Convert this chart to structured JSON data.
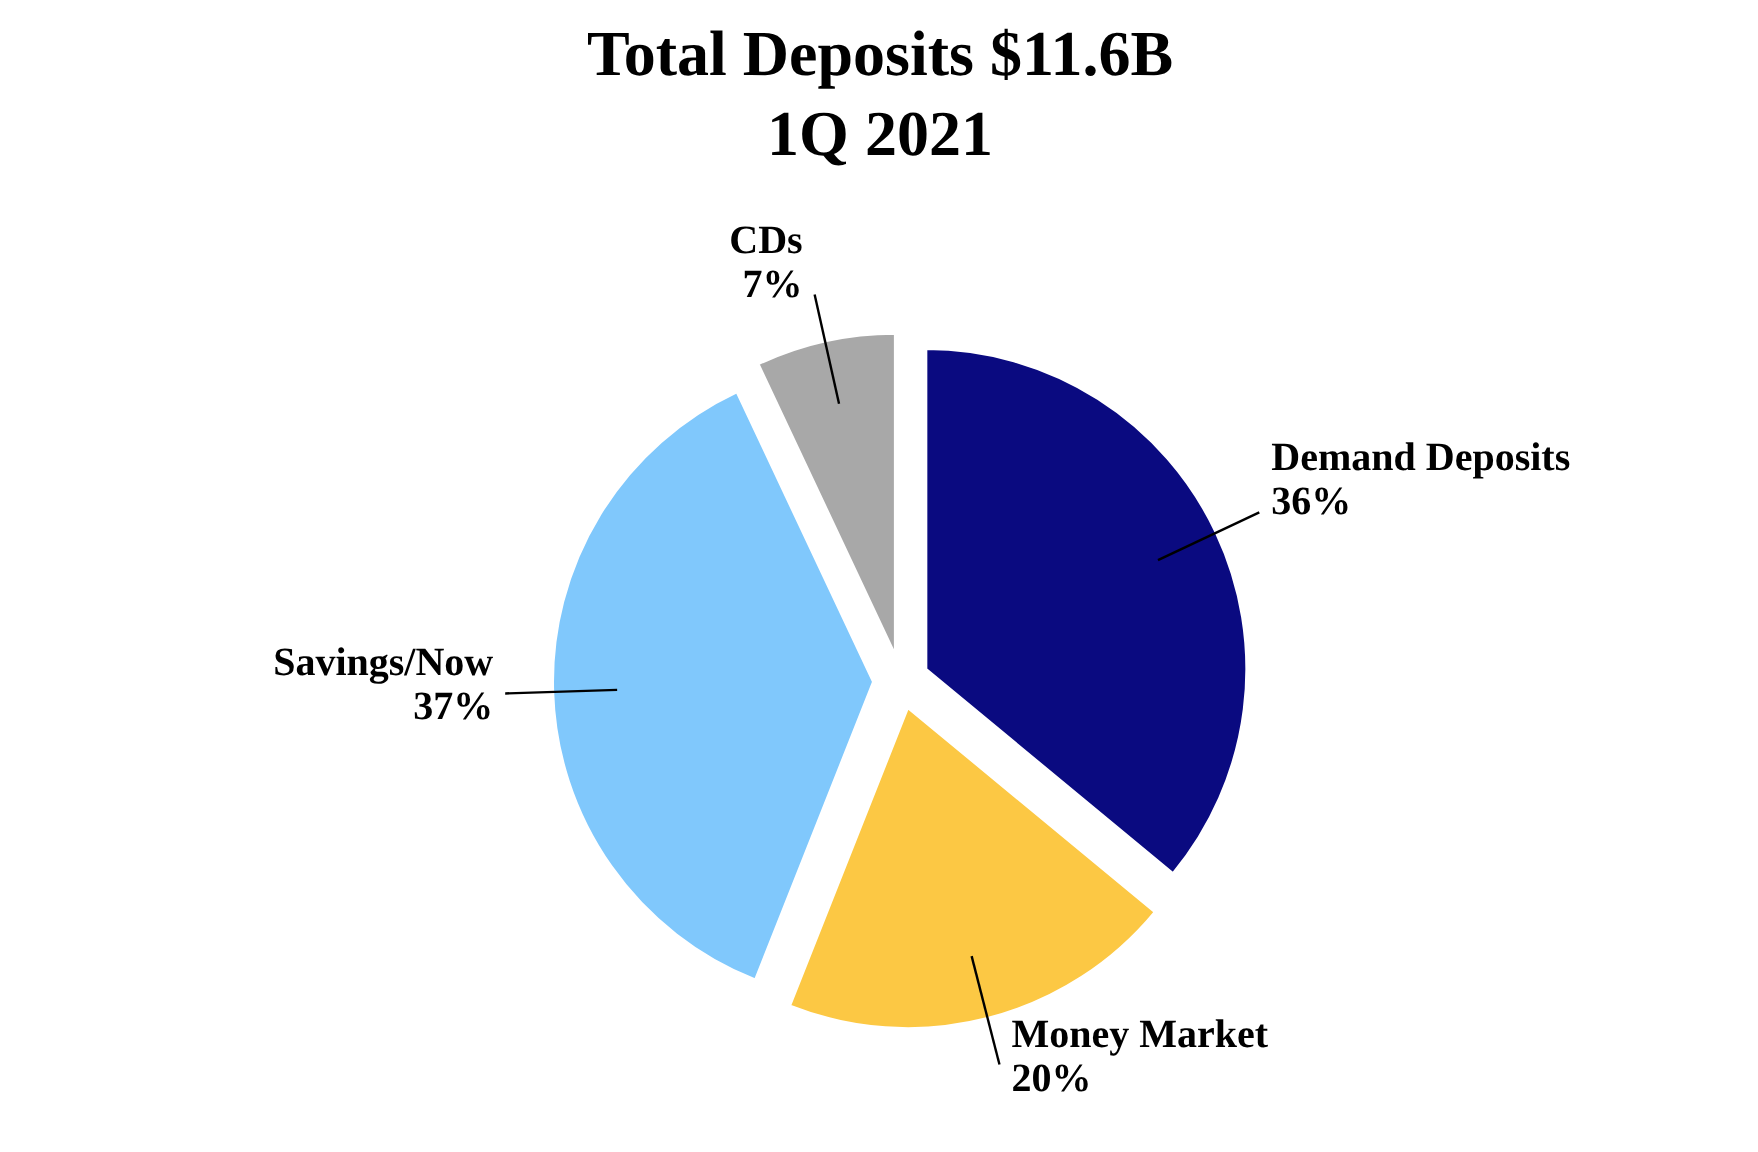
{
  "chart_data": {
    "type": "pie",
    "title": "Total Deposits $11.6B",
    "subtitle": "1Q 2021",
    "categories": [
      "Demand Deposits",
      "Money Market",
      "Savings/Now",
      "CDs"
    ],
    "values": [
      36,
      20,
      37,
      7
    ],
    "colors": [
      "#0a0a80",
      "#fcc844",
      "#80c8fc",
      "#a8a8a8"
    ],
    "value_labels": [
      "36%",
      "20%",
      "37%",
      "7%"
    ]
  }
}
